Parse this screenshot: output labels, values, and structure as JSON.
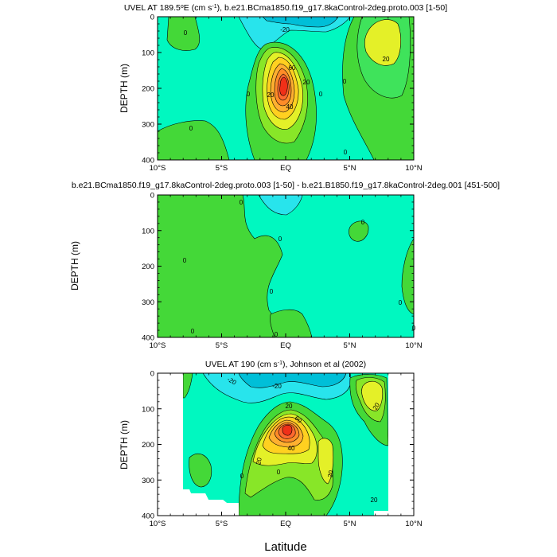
{
  "figure": {
    "xlabel": "Latitude"
  },
  "chart_data": [
    {
      "type": "heatmap",
      "title": "UVEL AT 189.5",
      "title_sup": "o",
      "title_mid": "E (cm s",
      "title_sup2": "-1",
      "title_tail": "), b.e21.BCma1850.f19_g17.8kaControl-2deg.proto.003 [1-50]",
      "ylabel": "DEPTH (m)",
      "xlim": [
        -10,
        10
      ],
      "ylim": [
        400,
        0
      ],
      "x_ticks": [
        "10°S",
        "5°S",
        "EQ",
        "5°N",
        "10°N"
      ],
      "x_tick_values": [
        -10,
        -5,
        0,
        5,
        10
      ],
      "y_ticks": [
        "0",
        "100",
        "200",
        "300",
        "400"
      ],
      "y_tick_values": [
        0,
        100,
        200,
        300,
        400
      ],
      "contour_labels": [
        "0",
        "-20",
        "20",
        "40",
        "60",
        "20",
        "0",
        "0",
        "20",
        "0",
        "0",
        "0"
      ],
      "core": {
        "lat": 0.0,
        "depth": 175,
        "max_speed": 100
      }
    },
    {
      "type": "heatmap",
      "title": "b.e21.BCma1850.f19_g17.8kaControl-2deg.proto.003 [1-50] - b.e21.B1850.f19_g17.8kaControl-2deg.001 [451-500]",
      "ylabel": "DEPTH (m)",
      "xlim": [
        -10,
        10
      ],
      "ylim": [
        400,
        0
      ],
      "x_ticks": [
        "10°S",
        "5°S",
        "EQ",
        "5°N",
        "10°N"
      ],
      "x_tick_values": [
        -10,
        -5,
        0,
        5,
        10
      ],
      "y_ticks": [
        "0",
        "100",
        "200",
        "300",
        "400"
      ],
      "y_tick_values": [
        0,
        100,
        200,
        300,
        400
      ],
      "contour_labels": [
        "0",
        "0",
        "0",
        "0",
        "0",
        "0",
        "0",
        "0",
        "0"
      ]
    },
    {
      "type": "heatmap",
      "title": "UVEL AT 190 (cm s",
      "title_sup": "-1",
      "title_tail": "), Johnson et al (2002)",
      "ylabel": "DEPTH (m)",
      "xlim": [
        -10,
        10
      ],
      "ylim": [
        400,
        0
      ],
      "x_ticks": [
        "10°S",
        "5°S",
        "EQ",
        "5°N",
        "10°N"
      ],
      "x_tick_values": [
        -10,
        -5,
        0,
        5,
        10
      ],
      "y_ticks": [
        "0",
        "100",
        "200",
        "300",
        "400"
      ],
      "y_tick_values": [
        0,
        100,
        200,
        300,
        400
      ],
      "data_extent_lat": [
        -8,
        8
      ],
      "contour_labels": [
        "-20",
        "-20",
        "20",
        "40",
        "60",
        "20",
        "20",
        "20",
        "20",
        "0",
        "0"
      ],
      "core": {
        "lat": 0.0,
        "depth": 150,
        "max_speed": 100
      }
    }
  ],
  "colors": {
    "neg40": "#00bfd8",
    "neg20": "#28e4ec",
    "zero": "#00f8c0",
    "pos0": "#44d838",
    "pos10": "#3fe35b",
    "pos20": "#88e628",
    "pos30": "#e4f028",
    "pos40": "#ffd020",
    "pos50": "#ffb030",
    "pos60": "#ff8c28",
    "pos70": "#ff6830",
    "pos80": "#f03018",
    "pos90": "#d81010"
  }
}
